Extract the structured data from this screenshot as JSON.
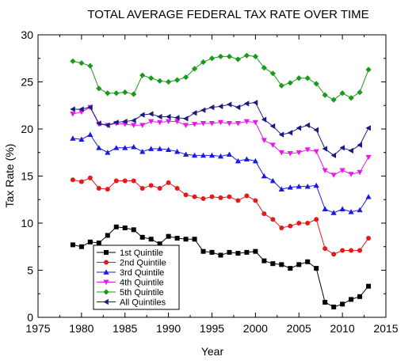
{
  "chart_data": {
    "type": "line",
    "title": "TOTAL AVERAGE FEDERAL TAX RATE OVER TIME",
    "xlabel": "Year",
    "ylabel": "Tax Rate (%)",
    "xlim": [
      1975,
      2015
    ],
    "ylim": [
      0,
      30
    ],
    "xticks": [
      1975,
      1980,
      1985,
      1990,
      1995,
      2000,
      2005,
      2010,
      2015
    ],
    "yticks": [
      0,
      5,
      10,
      15,
      20,
      25,
      30
    ],
    "grid": false,
    "legend_position": "bottom-left",
    "x": [
      1979,
      1980,
      1981,
      1982,
      1983,
      1984,
      1985,
      1986,
      1987,
      1988,
      1989,
      1990,
      1991,
      1992,
      1993,
      1994,
      1995,
      1996,
      1997,
      1998,
      1999,
      2000,
      2001,
      2002,
      2003,
      2004,
      2005,
      2006,
      2007,
      2008,
      2009,
      2010,
      2011,
      2012,
      2013
    ],
    "series": [
      {
        "name": "1st Quintile",
        "color": "#000000",
        "marker": "square",
        "values": [
          7.7,
          7.5,
          8.0,
          7.9,
          8.7,
          9.6,
          9.5,
          9.3,
          8.5,
          8.3,
          7.8,
          8.6,
          8.4,
          8.3,
          8.3,
          7.0,
          6.9,
          6.6,
          6.9,
          6.8,
          6.9,
          7.0,
          6.0,
          5.7,
          5.6,
          5.2,
          5.6,
          5.9,
          5.2,
          1.6,
          1.1,
          1.4,
          1.9,
          2.2,
          3.3
        ]
      },
      {
        "name": "2nd Quintile",
        "color": "#e41a1a",
        "marker": "circle",
        "values": [
          14.6,
          14.4,
          14.8,
          13.7,
          13.6,
          14.5,
          14.5,
          14.5,
          13.7,
          14.0,
          13.7,
          14.3,
          13.7,
          13.0,
          12.8,
          12.6,
          12.8,
          12.7,
          12.8,
          12.4,
          12.9,
          12.4,
          11.0,
          10.4,
          9.5,
          9.7,
          10.0,
          10.0,
          10.4,
          7.3,
          6.7,
          7.1,
          7.1,
          7.1,
          8.4
        ]
      },
      {
        "name": "3rd Quintile",
        "color": "#1a1ae6",
        "marker": "triangle-up",
        "values": [
          19.0,
          18.9,
          19.4,
          18.0,
          17.5,
          18.0,
          18.0,
          18.1,
          17.6,
          17.9,
          17.9,
          17.8,
          17.6,
          17.3,
          17.2,
          17.2,
          17.2,
          17.1,
          17.3,
          16.6,
          16.8,
          16.6,
          15.0,
          14.5,
          13.6,
          13.8,
          13.9,
          13.9,
          14.0,
          11.5,
          11.1,
          11.5,
          11.2,
          11.4,
          12.8
        ]
      },
      {
        "name": "4th Quintile",
        "color": "#e61ae6",
        "marker": "triangle-down",
        "values": [
          21.6,
          21.8,
          22.3,
          20.5,
          20.4,
          20.6,
          20.5,
          20.4,
          20.4,
          20.8,
          20.7,
          20.8,
          20.8,
          20.4,
          20.5,
          20.6,
          20.6,
          20.7,
          20.6,
          20.6,
          20.8,
          20.7,
          18.8,
          18.3,
          17.5,
          17.4,
          17.5,
          17.8,
          17.6,
          15.6,
          15.1,
          15.6,
          15.2,
          15.4,
          17.0
        ]
      },
      {
        "name": "5th Quintile",
        "color": "#1a9a1a",
        "marker": "diamond",
        "values": [
          27.2,
          27.0,
          26.7,
          24.3,
          23.8,
          23.8,
          23.9,
          23.7,
          25.7,
          25.4,
          25.1,
          25.0,
          25.2,
          25.5,
          26.4,
          27.1,
          27.5,
          27.7,
          27.7,
          27.4,
          27.8,
          27.7,
          26.5,
          25.9,
          24.6,
          24.9,
          25.4,
          25.4,
          24.8,
          23.6,
          23.1,
          23.8,
          23.3,
          23.9,
          26.3
        ]
      },
      {
        "name": "All Quintiles",
        "color": "#1a1a80",
        "marker": "triangle-left",
        "values": [
          22.1,
          22.1,
          22.3,
          20.6,
          20.4,
          20.7,
          20.8,
          20.9,
          21.5,
          21.6,
          21.3,
          21.3,
          21.2,
          21.1,
          21.7,
          22.0,
          22.3,
          22.4,
          22.6,
          22.3,
          22.7,
          22.8,
          21.0,
          20.3,
          19.4,
          19.6,
          20.1,
          20.4,
          19.9,
          17.9,
          17.2,
          18.0,
          17.7,
          18.3,
          20.1
        ]
      }
    ]
  }
}
